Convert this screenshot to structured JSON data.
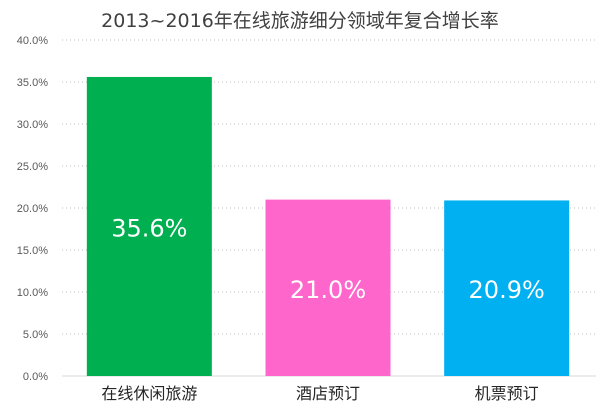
{
  "chart_data": {
    "type": "bar",
    "title": "2013~2016年在线旅游细分领域年复合增长率",
    "categories": [
      "在线休闲旅游",
      "酒店预订",
      "机票预订"
    ],
    "values": [
      35.6,
      21.0,
      20.9
    ],
    "data_labels": [
      "35.6%",
      "21.0%",
      "20.9%"
    ],
    "bar_colors": [
      "#00b050",
      "#ff66cc",
      "#00b0f0"
    ],
    "ylim": [
      0,
      40
    ],
    "y_ticks": [
      0,
      5,
      10,
      15,
      20,
      25,
      30,
      35,
      40
    ],
    "y_tick_labels": [
      "0.0%",
      "5.0%",
      "10.0%",
      "15.0%",
      "20.0%",
      "25.0%",
      "30.0%",
      "35.0%",
      "40.0%"
    ],
    "xlabel": "",
    "ylabel": "",
    "grid": true,
    "grid_style": "dotted",
    "legend": "none"
  }
}
